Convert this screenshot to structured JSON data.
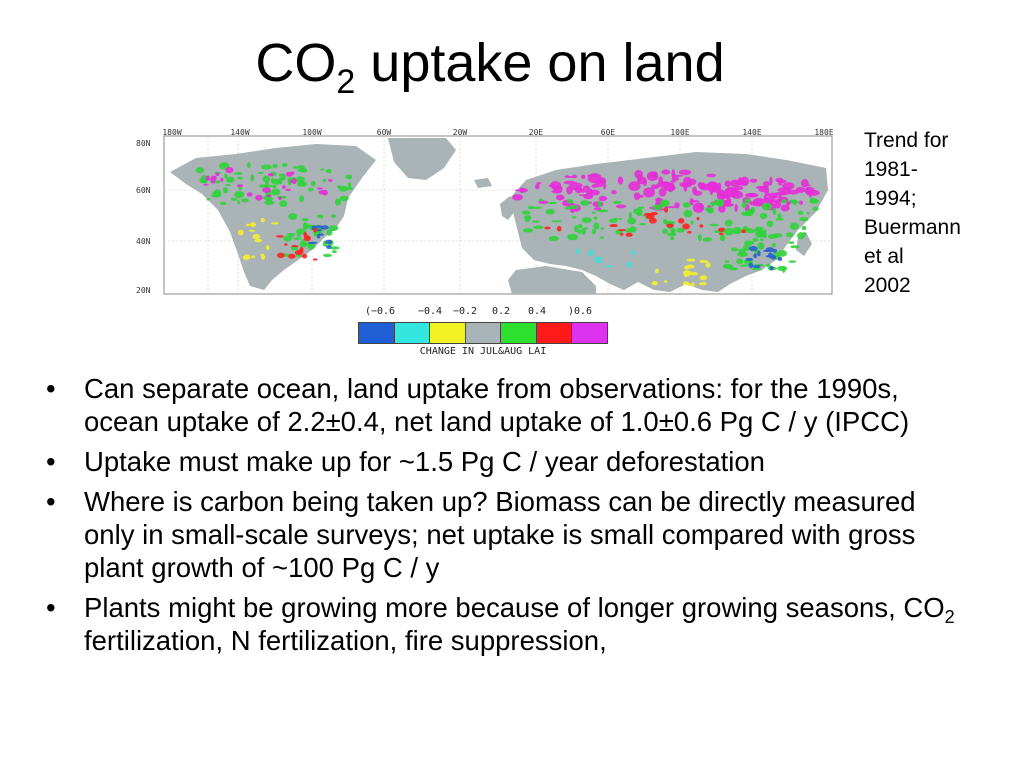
{
  "slide": {
    "title_main": "CO",
    "title_sub": "2",
    "title_rest": " uptake on land"
  },
  "map": {
    "lon_labels": [
      "180W",
      "140W",
      "100W",
      "60W",
      "20W",
      "20E",
      "60E",
      "100E",
      "140E",
      "180E"
    ],
    "lat_labels": [
      "80N",
      "60N",
      "40N",
      "20N"
    ],
    "legend_ticks": [
      "(−0.6",
      "−0.4",
      "−0.2",
      "0.2",
      "0.4",
      ")0.6"
    ],
    "legend_colors": [
      "#1f5fd6",
      "#33e6e0",
      "#f2f222",
      "#a8b4b8",
      "#2ee02e",
      "#ff1a1a",
      "#dd33ee"
    ],
    "legend_caption": "CHANGE IN JUL&AUG LAI",
    "colors": {
      "ocean": "#ffffff",
      "land_neutral": "#aab3b6",
      "green": "#2fd33a",
      "magenta": "#e62ed8",
      "red": "#ff2020",
      "yellow": "#f2ef2a",
      "blue": "#2a5fd0",
      "cyan": "#3ae2dc"
    }
  },
  "side_note": {
    "lines": [
      "Trend for",
      "1981-",
      "1994;",
      "Buermann",
      "et al",
      "2002"
    ]
  },
  "bullets": [
    {
      "text": "Can separate ocean, land uptake from observations: for the 1990s, ocean uptake of 2.2±0.4, net land uptake of 1.0±0.6 Pg C / y (IPCC)"
    },
    {
      "text": "Uptake must make up for ~1.5 Pg C / year deforestation"
    },
    {
      "text": "Where is carbon being taken up? Biomass can be directly measured only in small-scale surveys; net uptake is small compared with gross plant growth of ~100 Pg C / y"
    },
    {
      "pre": "Plants might be growing more because of longer growing seasons, CO",
      "sub": "2",
      "post": " fertilization, N fertilization, fire suppression,"
    }
  ],
  "bullet_glyph": "•"
}
